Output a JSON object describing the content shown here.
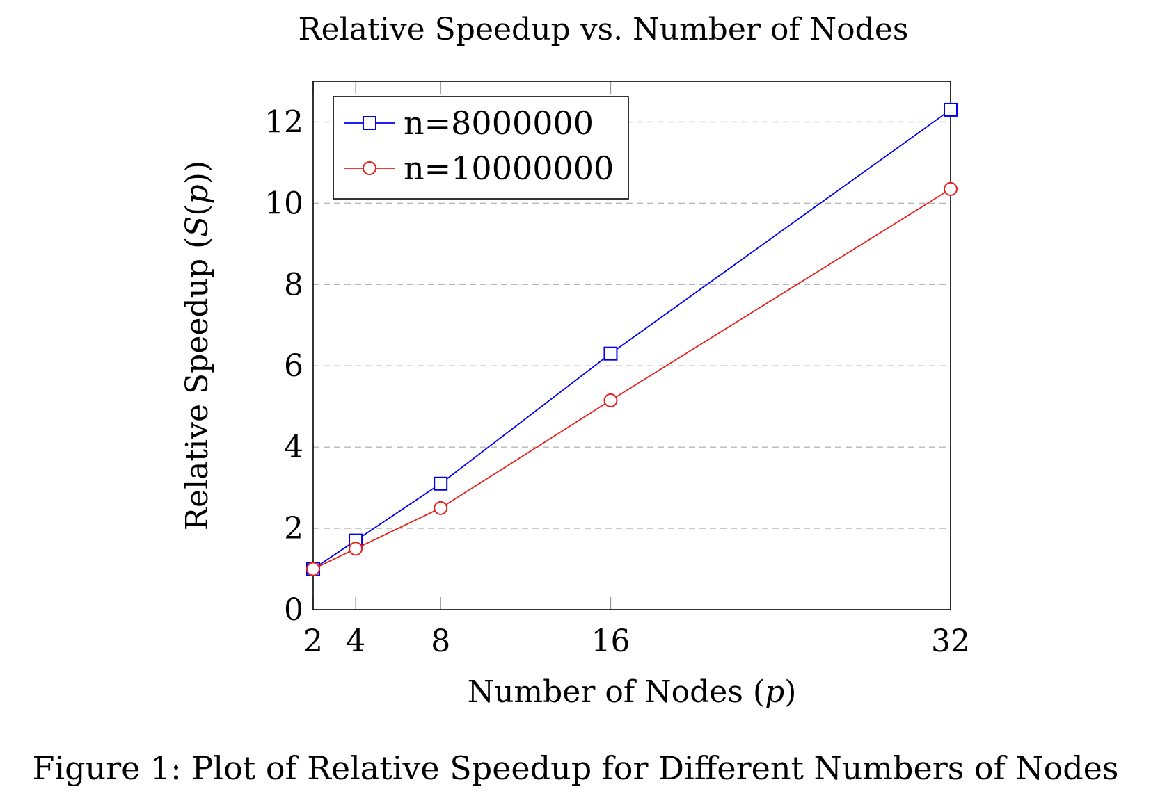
{
  "chart_data": {
    "type": "line",
    "title": "Relative Speedup vs. Number of Nodes",
    "xlabel": "Number of Nodes (",
    "xlabel_var": "p",
    "xlabel_close": ")",
    "ylabel": "Relative Speedup (",
    "ylabel_fn": "S",
    "ylabel_open": "(",
    "ylabel_var": "p",
    "ylabel_close": "))",
    "x": [
      2,
      4,
      8,
      16,
      32
    ],
    "x_ticks": [
      2,
      4,
      8,
      16,
      32
    ],
    "y_ticks": [
      0,
      2,
      4,
      6,
      8,
      10,
      12
    ],
    "xlim": [
      2,
      32
    ],
    "ylim": [
      0,
      13
    ],
    "grid": "horizontal dashed",
    "legend_position": "top-left",
    "series": [
      {
        "name": "n=8000000",
        "color": "#0000ee",
        "marker": "square",
        "values": [
          1.0,
          1.7,
          3.1,
          6.3,
          12.3
        ]
      },
      {
        "name": "n=10000000",
        "color": "#e8211b",
        "marker": "circle",
        "values": [
          1.0,
          1.5,
          2.5,
          5.15,
          10.35
        ]
      }
    ]
  },
  "caption": "Figure 1: Plot of Relative Speedup for Different Numbers of Nodes"
}
